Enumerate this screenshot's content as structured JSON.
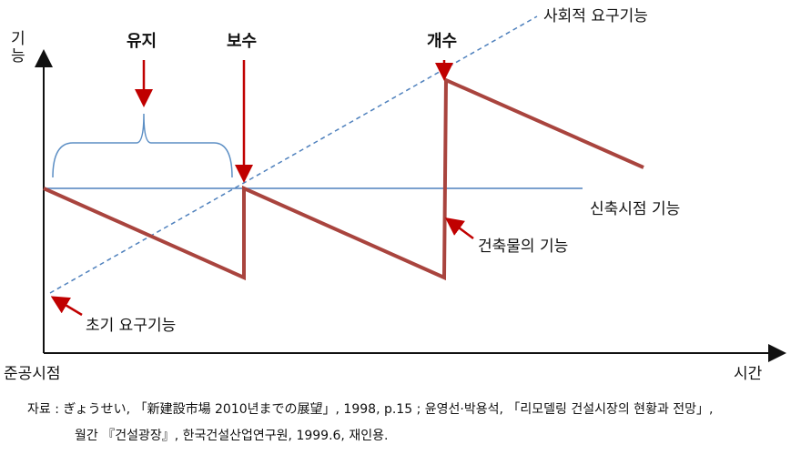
{
  "axes": {
    "y_label": "기능",
    "origin_label": "준공시점",
    "x_label": "시간"
  },
  "lines": {
    "social": "사회적 요구기능",
    "initial": "신축시점 기능",
    "building": "건축물의 기능",
    "initial_demand": "초기 요구기능"
  },
  "events": [
    "유지",
    "보수",
    "개수"
  ],
  "caption": [
    "자료 : ぎょうせい, 「新建設市場 2010년までの展望」, 1998, p.15 ; 윤영선·박용석, 「리모델링 건설시장의 현황과 전망」,",
    "월간 『건설광장』, 한국건설산업연구원, 1999.6, 재인용."
  ]
}
